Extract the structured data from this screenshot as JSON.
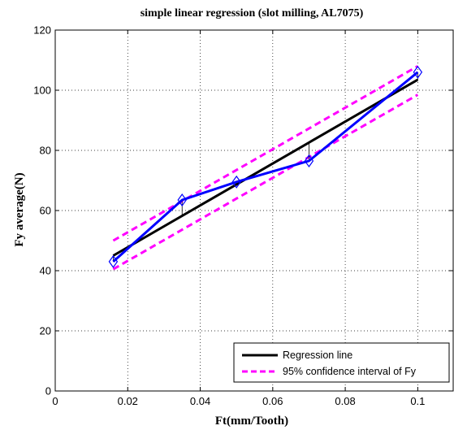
{
  "chart_data": {
    "type": "line",
    "title": "simple linear regression (slot milling, AL7075)",
    "xlabel": "Ft(mm/Tooth)",
    "ylabel": "Fy average(N)",
    "xlim": [
      0,
      0.11
    ],
    "ylim": [
      0,
      120
    ],
    "xticks": [
      0,
      0.02,
      0.04,
      0.06,
      0.08,
      0.1
    ],
    "xtick_labels": [
      "0",
      "0.02",
      "0.04",
      "0.06",
      "0.08",
      "0.1"
    ],
    "yticks": [
      0,
      20,
      40,
      60,
      80,
      100,
      120
    ],
    "ytick_labels": [
      "0",
      "20",
      "40",
      "60",
      "80",
      "100",
      "120"
    ],
    "grid": true,
    "legend_position": "bottom-right",
    "colors": {
      "observed": "#0000ff",
      "regression": "#000000",
      "confidence": "#ff00ff"
    },
    "observed": {
      "x": [
        0.016,
        0.035,
        0.05,
        0.07,
        0.1
      ],
      "y": [
        43,
        63.5,
        69.5,
        76.5,
        106
      ]
    },
    "regression": {
      "name": "Regression line",
      "x": [
        0.016,
        0.1
      ],
      "y": [
        45,
        103.5
      ]
    },
    "confidence_upper": {
      "name": "95% confidence interval of Fy",
      "x": [
        0.016,
        0.1
      ],
      "y": [
        50,
        108
      ]
    },
    "confidence_lower": {
      "x": [
        0.016,
        0.1
      ],
      "y": [
        40.5,
        98.5
      ]
    }
  }
}
